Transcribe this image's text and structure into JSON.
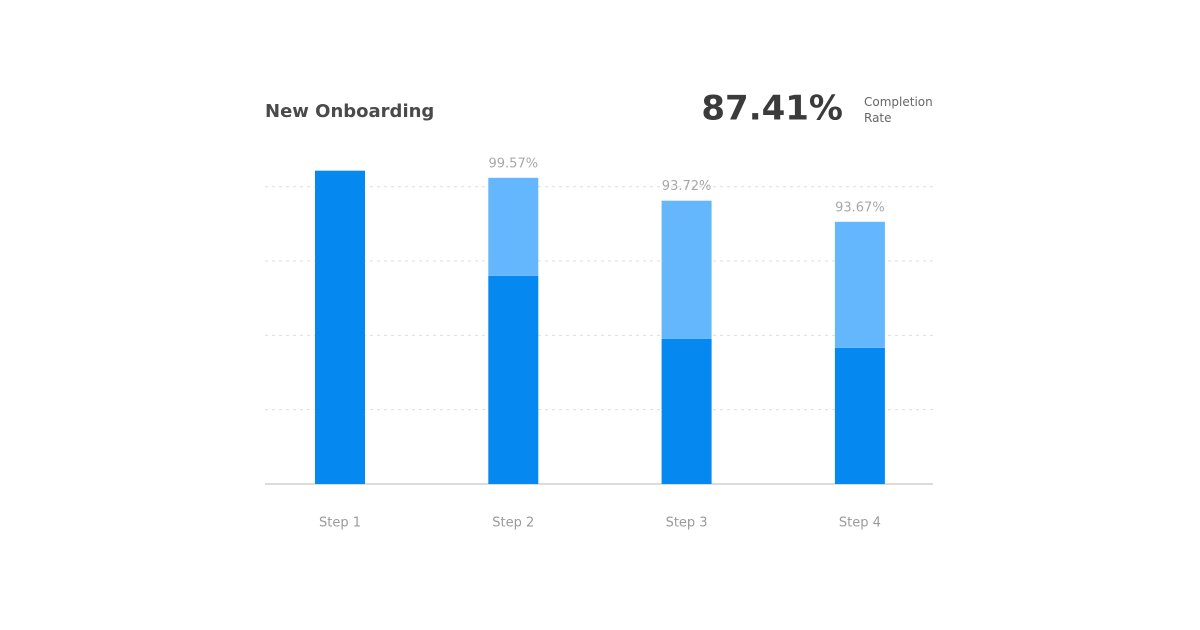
{
  "chart_data": {
    "type": "stacked_bar",
    "title": "New Onboarding",
    "completion_rate": "87.41%",
    "completion_label": "Completion Rate",
    "categories": [
      "Step 1",
      "Step 2",
      "Step 3",
      "Step 4"
    ],
    "series": [
      {
        "color": "#0588f0",
        "values": [
          105.4,
          70.0,
          48.8,
          45.8
        ]
      },
      {
        "color": "#64b7fc",
        "values": [
          0,
          33.0,
          46.5,
          42.4
        ]
      }
    ],
    "rate_labels": [
      null,
      "99.57%",
      "93.72%",
      "93.67%"
    ],
    "ylim": [
      0,
      110
    ],
    "yticks": [
      25,
      50,
      75,
      100
    ],
    "grid": true
  }
}
